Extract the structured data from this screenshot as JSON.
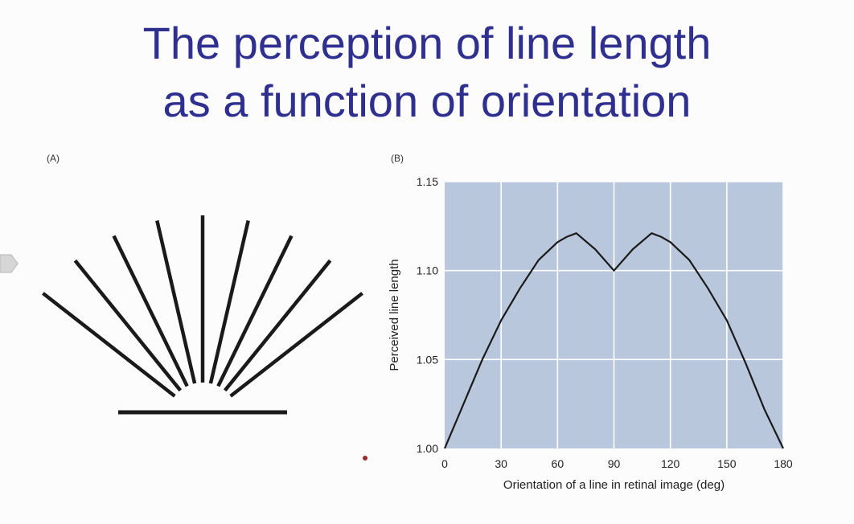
{
  "slide": {
    "title_line1": "The perception of line length",
    "title_line2": "as a function of orientation",
    "panel_a_label": "(A)",
    "panel_b_label": "(B)"
  },
  "fan_lines_deg": [
    90,
    103,
    116,
    129,
    142,
    77,
    64,
    51,
    38
  ],
  "colors": {
    "title": "#2e2f8f",
    "plot_bg": "#b8c7dc",
    "grid": "#ffffff",
    "line": "#1a1a1a"
  },
  "chart_data": {
    "type": "line",
    "title": "",
    "xlabel": "Orientation of a line in retinal image (deg)",
    "ylabel": "Perceived line length",
    "xlim": [
      0,
      180
    ],
    "ylim": [
      1.0,
      1.15
    ],
    "xticks": [
      0,
      30,
      60,
      90,
      120,
      150,
      180
    ],
    "xtick_labels": [
      "0",
      "30",
      "60",
      "90",
      "120",
      "150",
      "180"
    ],
    "yticks": [
      1.0,
      1.05,
      1.1,
      1.15
    ],
    "ytick_labels": [
      "1.00",
      "1.05",
      "1.10",
      "1.15"
    ],
    "grid": true,
    "series": [
      {
        "x": [
          0,
          10,
          20,
          30,
          40,
          50,
          60,
          65,
          70,
          80,
          90,
          100,
          110,
          115,
          120,
          130,
          140,
          150,
          160,
          170,
          180
        ],
        "y": [
          1.0,
          1.025,
          1.05,
          1.072,
          1.09,
          1.106,
          1.116,
          1.119,
          1.121,
          1.112,
          1.1,
          1.112,
          1.121,
          1.119,
          1.116,
          1.106,
          1.09,
          1.072,
          1.048,
          1.022,
          1.0
        ]
      }
    ]
  }
}
